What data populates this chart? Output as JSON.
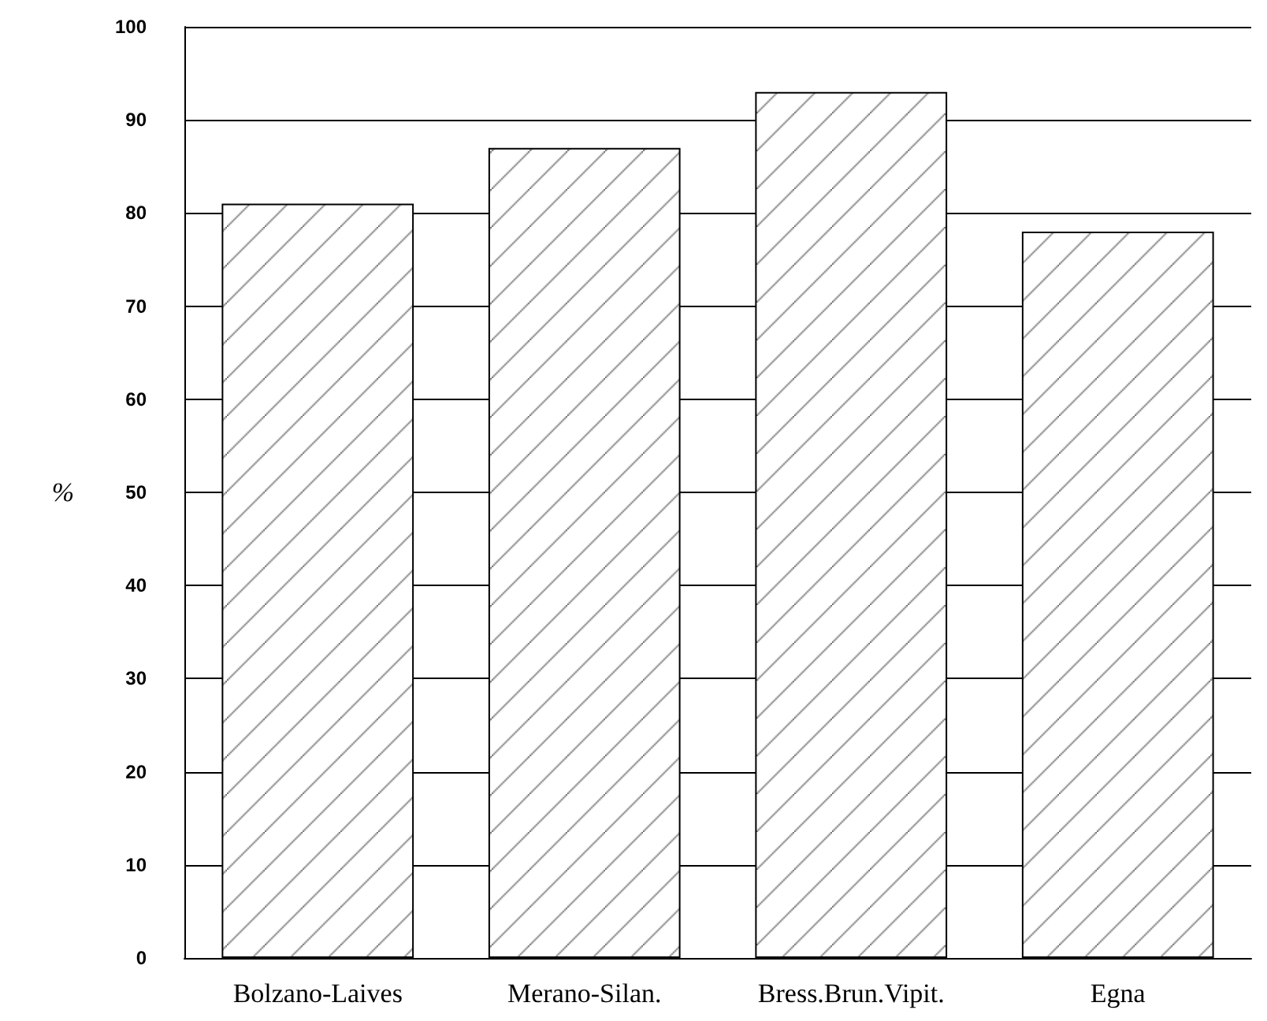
{
  "chart_data": {
    "type": "bar",
    "ylabel": "%",
    "categories": [
      "Bolzano-Laives",
      "Merano-Silan.",
      "Bress.Brun.Vipit.",
      "Egna"
    ],
    "values": [
      81,
      87,
      93,
      78
    ],
    "ylim": [
      0,
      100
    ],
    "yticks": [
      0,
      10,
      20,
      30,
      40,
      50,
      60,
      70,
      80,
      90,
      100
    ],
    "grid": "y"
  }
}
